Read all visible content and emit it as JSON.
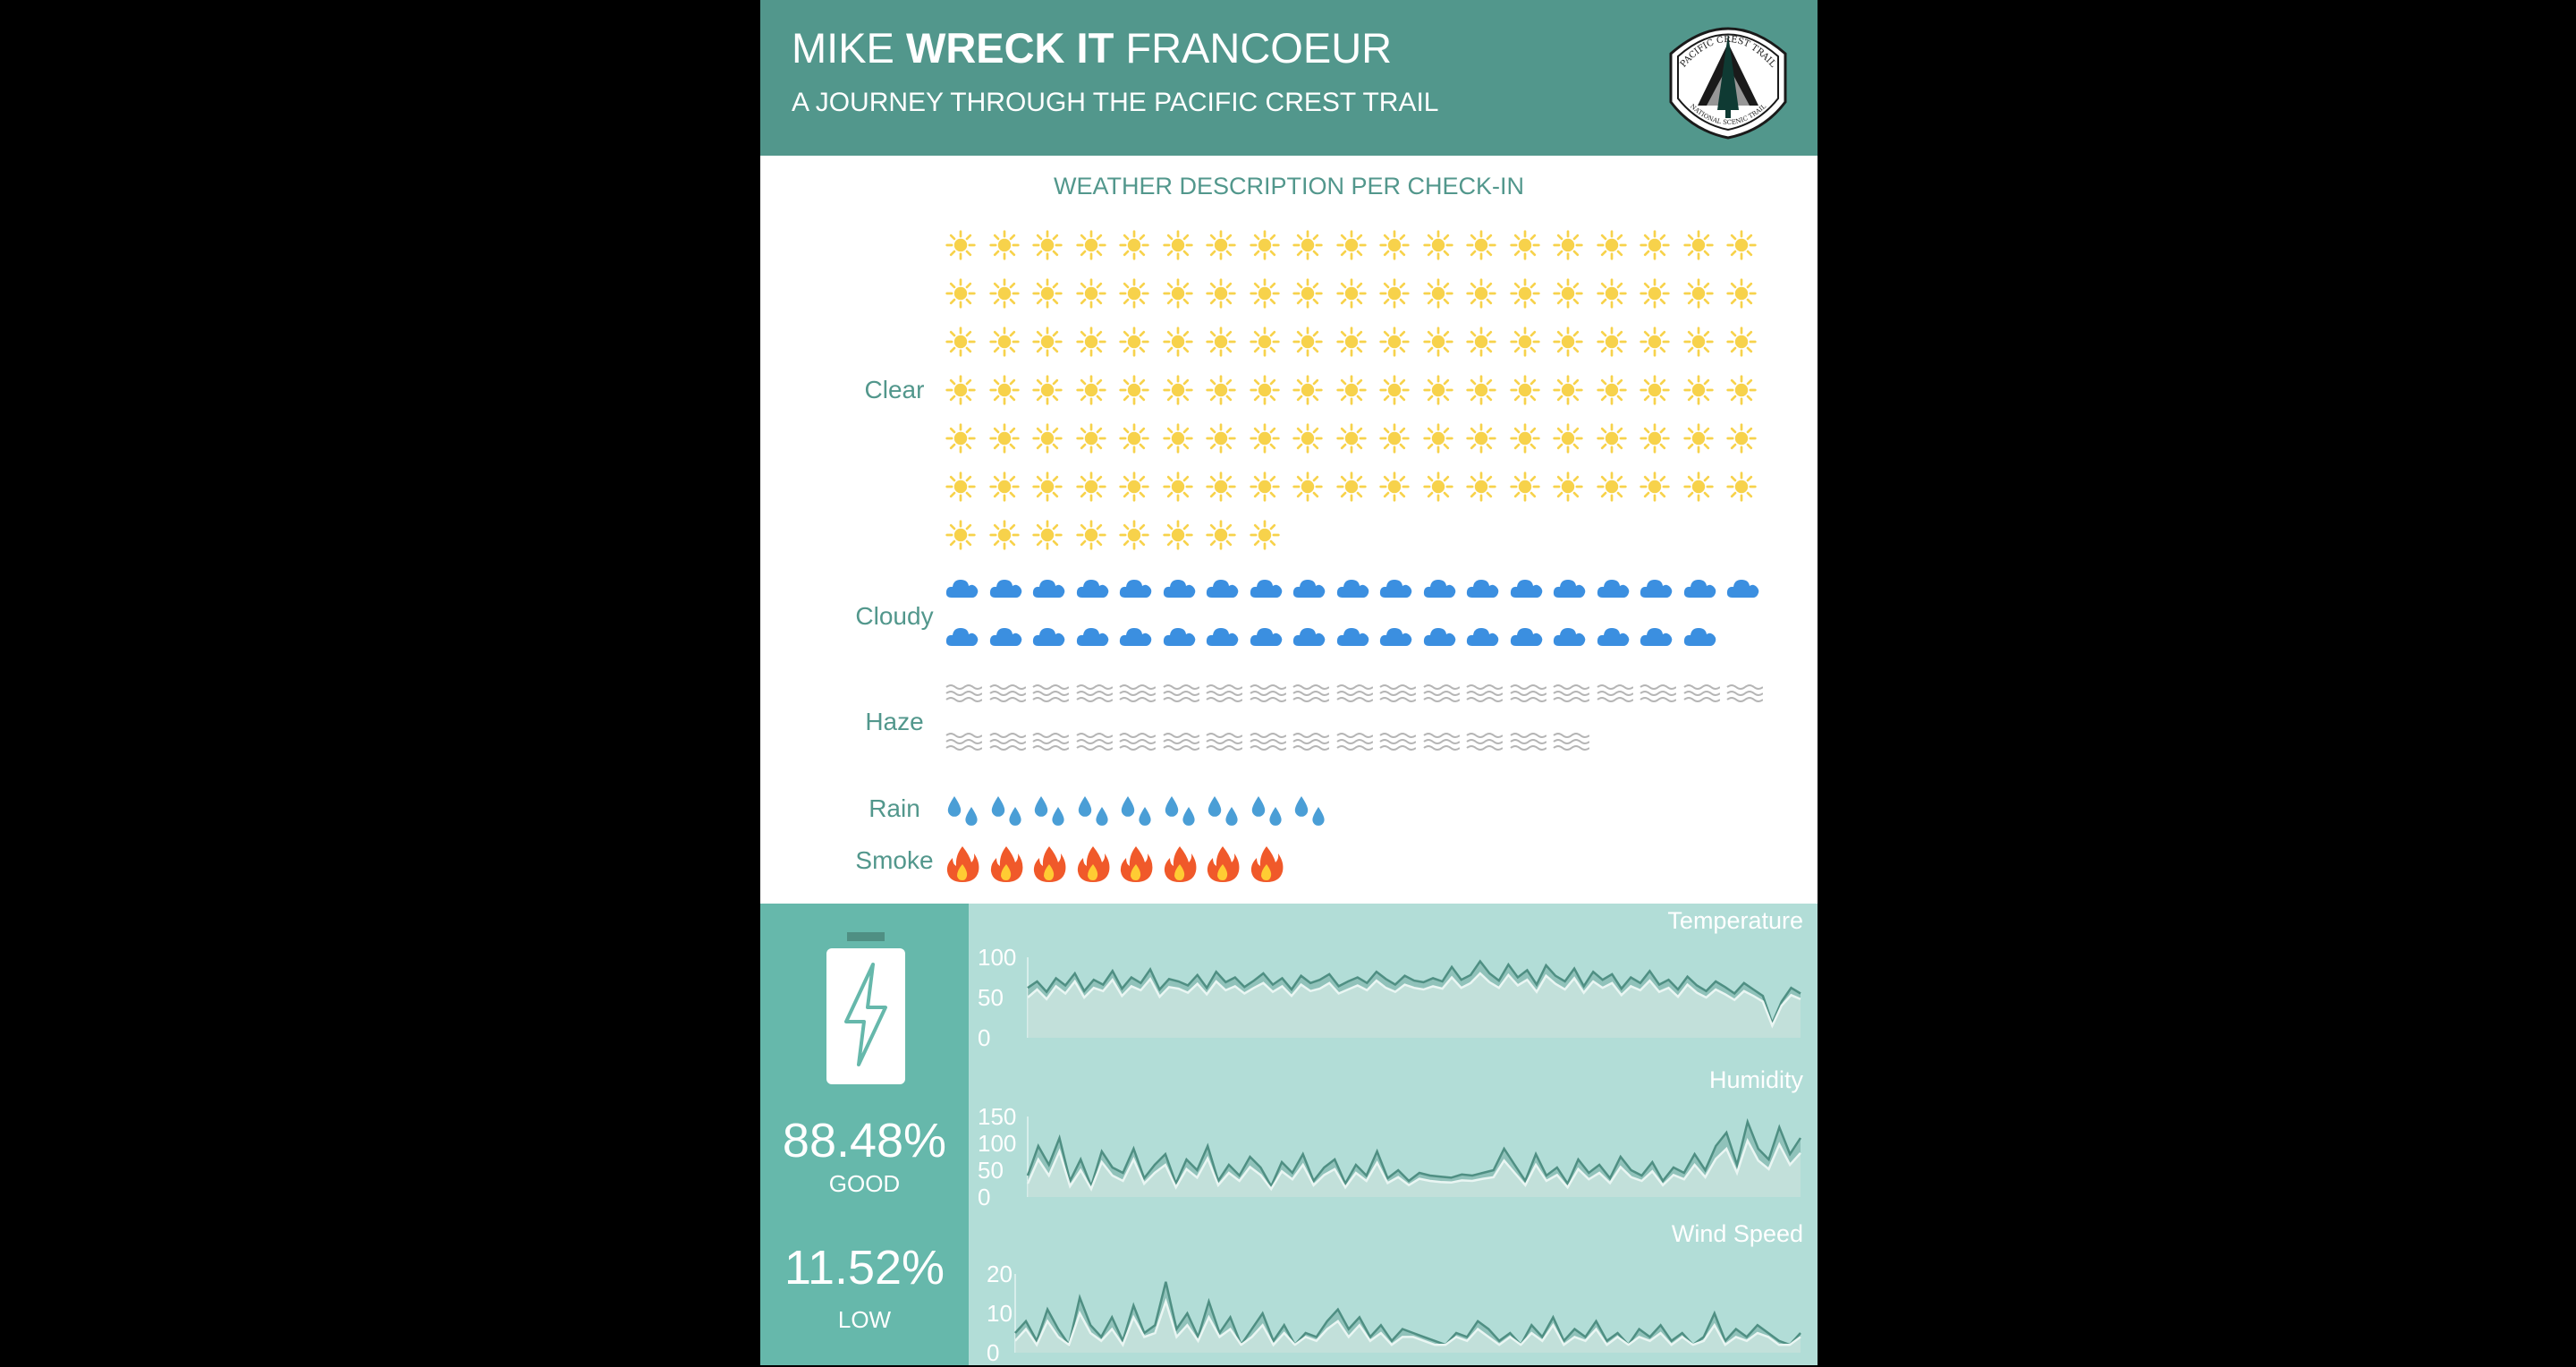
{
  "header": {
    "title_pre": "MIKE ",
    "title_bold": "WRECK IT",
    "title_post": " FRANCOEUR",
    "subtitle": "A JOURNEY THROUGH THE PACIFIC CREST TRAIL",
    "logo_text_top": "PACIFIC CREST TRAIL",
    "logo_text_bottom": "NATIONAL SCENIC TRAIL"
  },
  "colors": {
    "header": "#52978c",
    "accent_text": "#52978c",
    "battery_panel": "#66b8ab",
    "charts_panel": "#b2ddd7",
    "sun": "#f7d24b",
    "cloud": "#3b8fe0",
    "haze": "#b5b5b5",
    "rain": "#4a9ed6",
    "smoke": "#f0592a",
    "line_dark": "#4f8f83",
    "line_light": "#e4f3f0"
  },
  "weather": {
    "title": "WEATHER DESCRIPTION PER CHECK-IN",
    "icons_per_row": 19,
    "categories": [
      {
        "label": "Clear",
        "count": 122,
        "icon": "sun-icon"
      },
      {
        "label": "Cloudy",
        "count": 37,
        "icon": "cloud-icon"
      },
      {
        "label": "Haze",
        "count": 34,
        "icon": "haze-icon"
      },
      {
        "label": "Rain",
        "count": 9,
        "icon": "raindrops-icon"
      },
      {
        "label": "Smoke",
        "count": 8,
        "icon": "fire-icon"
      }
    ]
  },
  "battery": {
    "icon": "battery-bolt-icon",
    "good_value": "88.48%",
    "good_label": "GOOD",
    "low_value": "11.52%",
    "low_label": "LOW"
  },
  "chart_data": [
    {
      "type": "area",
      "title": "Temperature",
      "y_ticks": [
        "100",
        "50",
        "0"
      ],
      "ylim": [
        0,
        100
      ],
      "series": [
        {
          "values": [
            62,
            70,
            57,
            74,
            65,
            80,
            58,
            72,
            66,
            83,
            61,
            75,
            68,
            85,
            60,
            73,
            70,
            65,
            78,
            62,
            82,
            69,
            75,
            63,
            71,
            80,
            66,
            74,
            60,
            77,
            68,
            72,
            79,
            64,
            70,
            75,
            68,
            82,
            73,
            66,
            77,
            71,
            69,
            74,
            70,
            88,
            72,
            78,
            95,
            80,
            71,
            91,
            75,
            84,
            66,
            90,
            77,
            70,
            86,
            64,
            82,
            72,
            79,
            61,
            75,
            68,
            83,
            66,
            72,
            60,
            76,
            65,
            58,
            70,
            63,
            55,
            68,
            60,
            52,
            18,
            45,
            62,
            55
          ]
        },
        {
          "values": [
            50,
            60,
            48,
            64,
            55,
            70,
            50,
            62,
            58,
            72,
            52,
            64,
            59,
            73,
            51,
            63,
            61,
            56,
            67,
            54,
            70,
            59,
            64,
            55,
            62,
            68,
            57,
            64,
            52,
            66,
            58,
            61,
            68,
            55,
            60,
            65,
            59,
            71,
            62,
            57,
            66,
            62,
            60,
            64,
            61,
            75,
            62,
            68,
            80,
            69,
            62,
            78,
            65,
            72,
            57,
            77,
            67,
            60,
            74,
            56,
            70,
            62,
            68,
            53,
            64,
            59,
            71,
            57,
            62,
            51,
            66,
            56,
            50,
            60,
            54,
            47,
            58,
            52,
            45,
            15,
            40,
            53,
            48
          ]
        }
      ]
    },
    {
      "type": "area",
      "title": "Humidity",
      "y_ticks": [
        "150",
        "100",
        "50",
        "0"
      ],
      "ylim": [
        0,
        150
      ],
      "series": [
        {
          "values": [
            40,
            95,
            60,
            110,
            30,
            70,
            20,
            85,
            55,
            45,
            90,
            35,
            60,
            80,
            25,
            70,
            50,
            95,
            30,
            60,
            40,
            75,
            55,
            20,
            65,
            45,
            80,
            30,
            55,
            70,
            25,
            60,
            40,
            85,
            35,
            50,
            30,
            45,
            40,
            38,
            36,
            42,
            40,
            45,
            50,
            90,
            60,
            30,
            80,
            40,
            55,
            25,
            70,
            45,
            60,
            35,
            75,
            50,
            40,
            65,
            30,
            55,
            45,
            80,
            50,
            95,
            120,
            60,
            140,
            90,
            70,
            130,
            80,
            110
          ]
        },
        {
          "values": [
            25,
            70,
            40,
            85,
            20,
            50,
            15,
            65,
            40,
            30,
            70,
            25,
            45,
            60,
            18,
            52,
            36,
            72,
            22,
            45,
            30,
            56,
            41,
            15,
            48,
            33,
            60,
            22,
            41,
            52,
            18,
            45,
            30,
            64,
            26,
            37,
            22,
            34,
            30,
            28,
            27,
            31,
            30,
            34,
            37,
            68,
            45,
            22,
            60,
            30,
            41,
            18,
            52,
            33,
            45,
            26,
            56,
            37,
            30,
            48,
            22,
            41,
            33,
            60,
            37,
            71,
            90,
            45,
            105,
            68,
            52,
            98,
            60,
            82
          ]
        }
      ]
    },
    {
      "type": "area",
      "title": "Wind Speed",
      "y_ticks": [
        "20",
        "10",
        "0"
      ],
      "ylim": [
        0,
        20
      ],
      "series": [
        {
          "values": [
            5,
            8,
            3,
            11,
            6,
            2,
            14,
            7,
            4,
            9,
            3,
            12,
            5,
            7,
            18,
            6,
            10,
            4,
            13,
            5,
            9,
            2,
            6,
            10,
            3,
            7,
            2,
            5,
            4,
            8,
            11,
            6,
            9,
            4,
            7,
            3,
            6,
            5,
            4,
            3,
            2,
            5,
            4,
            8,
            6,
            3,
            5,
            2,
            7,
            4,
            9,
            3,
            6,
            4,
            8,
            3,
            5,
            2,
            6,
            4,
            7,
            3,
            5,
            2,
            4,
            10,
            3,
            6,
            4,
            7,
            5,
            3,
            2,
            5
          ]
        },
        {
          "values": [
            3,
            6,
            2,
            8,
            4,
            2,
            10,
            5,
            3,
            6,
            2,
            9,
            4,
            5,
            13,
            4,
            7,
            3,
            9,
            4,
            6,
            2,
            4,
            7,
            2,
            5,
            2,
            4,
            3,
            6,
            8,
            4,
            7,
            3,
            5,
            2,
            4,
            4,
            3,
            2,
            2,
            4,
            3,
            6,
            4,
            2,
            4,
            2,
            5,
            3,
            7,
            2,
            4,
            3,
            6,
            2,
            4,
            2,
            4,
            3,
            5,
            2,
            4,
            2,
            3,
            7,
            2,
            4,
            3,
            5,
            4,
            2,
            2,
            4
          ]
        }
      ]
    }
  ]
}
